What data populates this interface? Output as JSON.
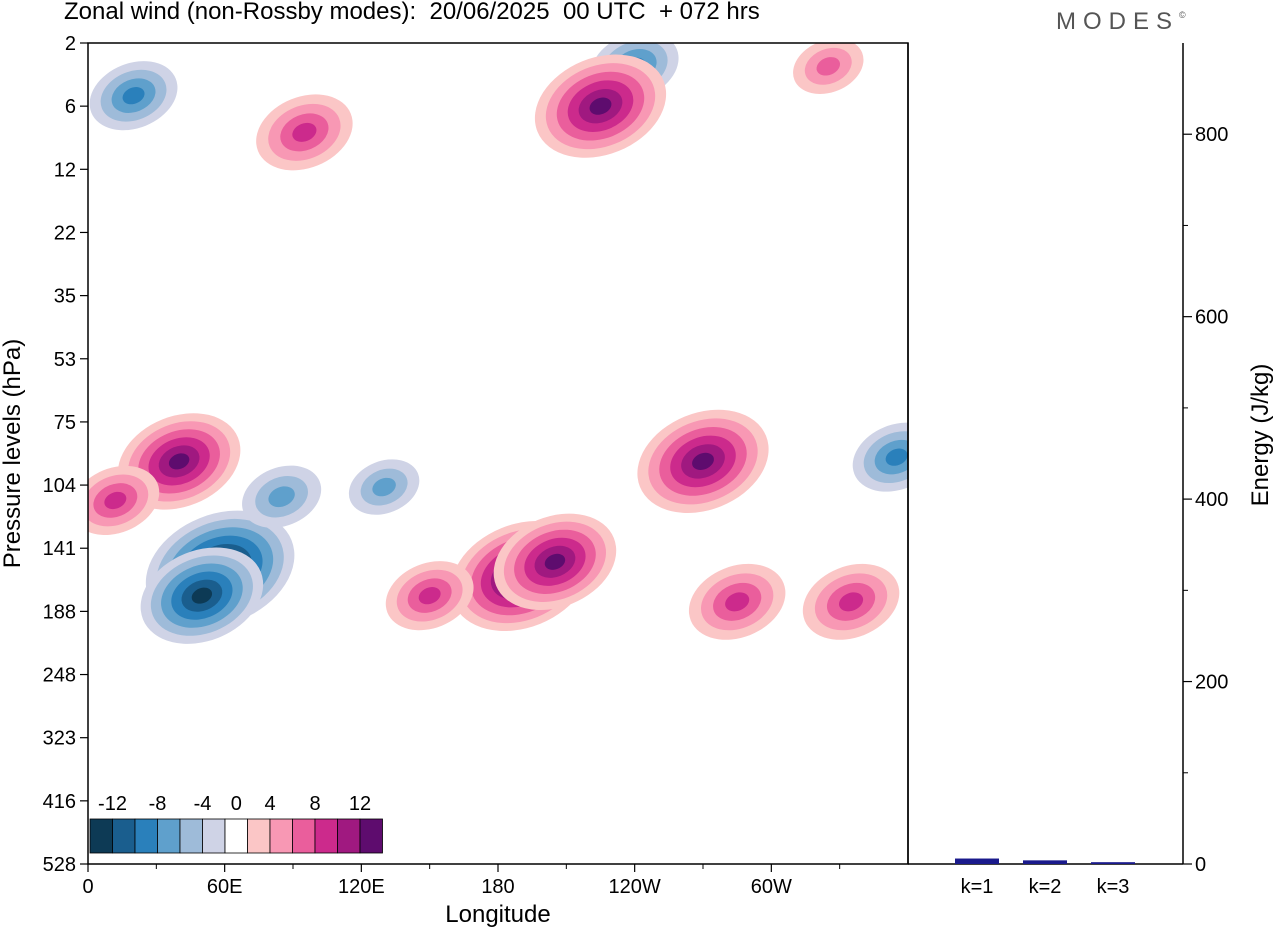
{
  "title": "Zonal wind (non-Rossby modes):  20/06/2025  00 UTC  + 072 hrs",
  "logo": "MODES",
  "logo_mark": "©",
  "chart_data": [
    {
      "type": "heatmap",
      "xlabel": "Longitude",
      "ylabel": "Pressure levels (hPa)",
      "x_ticks": [
        "0",
        "60E",
        "120E",
        "180",
        "120W",
        "60W"
      ],
      "x_tick_values": [
        0,
        60,
        120,
        180,
        240,
        300
      ],
      "xlim": [
        0,
        360
      ],
      "y_ticks": [
        "2",
        "6",
        "12",
        "22",
        "35",
        "53",
        "75",
        "104",
        "141",
        "188",
        "248",
        "323",
        "416",
        "528"
      ],
      "colorbar": {
        "tick_labels": [
          "-12",
          "-8",
          "-4",
          "0",
          "4",
          "8",
          "12"
        ],
        "levels": [
          -14,
          -12,
          -10,
          -8,
          -6,
          -4,
          -2,
          2,
          4,
          6,
          8,
          10,
          12,
          14
        ],
        "colors": [
          "#0d3a55",
          "#1a5e8e",
          "#2a80bb",
          "#5fa0cc",
          "#9ebbd9",
          "#cfd3e6",
          "#ffffff",
          "#fbc6c6",
          "#f898b4",
          "#ea5e9c",
          "#cc2a8c",
          "#a01980",
          "#5e0c6e"
        ]
      },
      "features": [
        {
          "lon": 58,
          "level": 155,
          "value": -14
        },
        {
          "lon": 50,
          "level": 175,
          "value": -11
        },
        {
          "lon": 85,
          "level": 110,
          "value": -6
        },
        {
          "lon": 130,
          "level": 105,
          "value": -5
        },
        {
          "lon": 20,
          "level": 5,
          "value": -7
        },
        {
          "lon": 240,
          "level": 3,
          "value": -7
        },
        {
          "lon": 355,
          "level": 90,
          "value": -7
        },
        {
          "lon": 40,
          "level": 92,
          "value": 11
        },
        {
          "lon": 12,
          "level": 112,
          "value": 7
        },
        {
          "lon": 190,
          "level": 160,
          "value": 13
        },
        {
          "lon": 205,
          "level": 150,
          "value": 11
        },
        {
          "lon": 270,
          "level": 92,
          "value": 12
        },
        {
          "lon": 150,
          "level": 175,
          "value": 7
        },
        {
          "lon": 285,
          "level": 180,
          "value": 8
        },
        {
          "lon": 335,
          "level": 180,
          "value": 8
        },
        {
          "lon": 225,
          "level": 6,
          "value": 12
        },
        {
          "lon": 95,
          "level": 8,
          "value": 8
        },
        {
          "lon": 325,
          "level": 3,
          "value": 5
        }
      ]
    },
    {
      "type": "bar",
      "categories": [
        "k=1",
        "k=2",
        "k=3"
      ],
      "values": [
        6,
        4,
        2
      ],
      "ylabel": "Energy (J/kg)",
      "ylim": [
        0,
        900
      ],
      "y_ticks": [
        0,
        200,
        400,
        600,
        800
      ],
      "bar_color": "#1a1a8c"
    }
  ]
}
